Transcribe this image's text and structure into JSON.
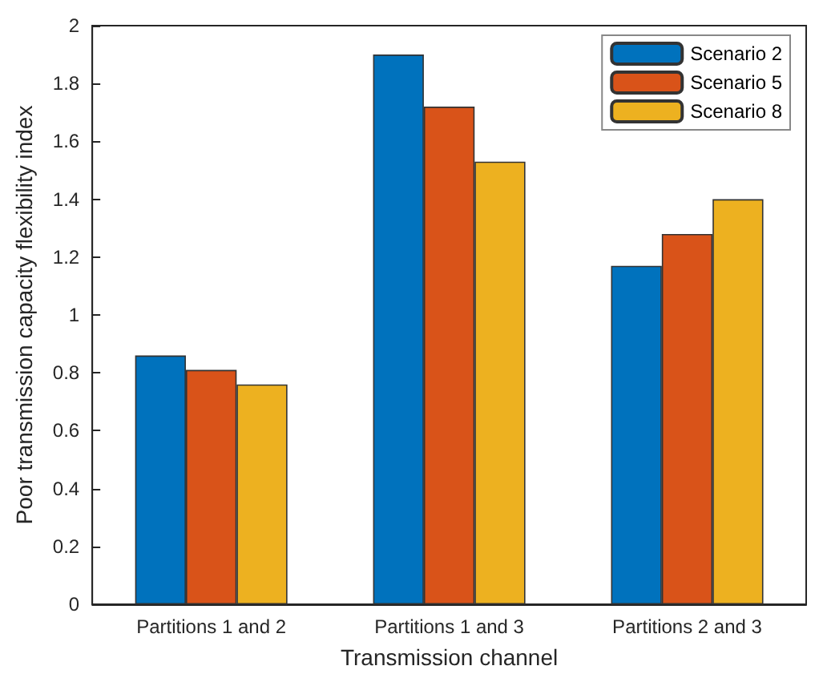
{
  "chart_data": {
    "type": "bar",
    "xlabel": "Transmission channel",
    "ylabel": "Poor transmission capacity flexibility index",
    "categories": [
      "Partitions 1 and 2",
      "Partitions 1 and 3",
      "Partitions 2 and 3"
    ],
    "series": [
      {
        "name": "Scenario 2",
        "color": "#0072bd",
        "values": [
          0.86,
          1.9,
          1.17
        ]
      },
      {
        "name": "Scenario 5",
        "color": "#d95319",
        "values": [
          0.81,
          1.72,
          1.28
        ]
      },
      {
        "name": "Scenario 8",
        "color": "#edb120",
        "values": [
          0.76,
          1.53,
          1.4
        ]
      }
    ],
    "ylim": [
      0,
      2
    ],
    "yticks": [
      0,
      0.2,
      0.4,
      0.6,
      0.8,
      1,
      1.2,
      1.4,
      1.6,
      1.8,
      2
    ],
    "grid": false,
    "legend": "top right"
  }
}
